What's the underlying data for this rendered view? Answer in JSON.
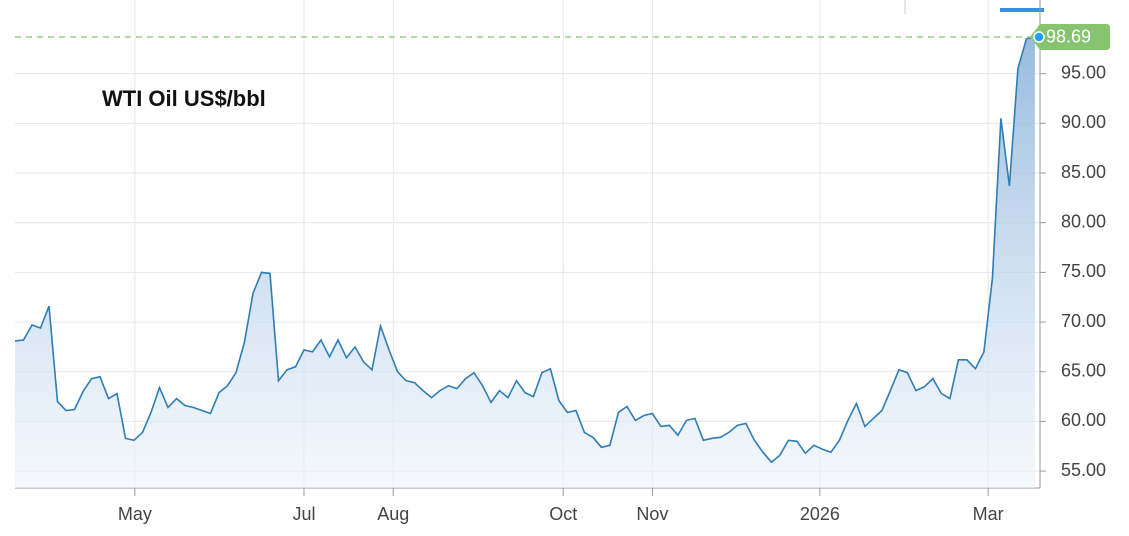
{
  "chart_data": {
    "type": "line",
    "title": "WTI Oil US$/bbl",
    "series": [
      {
        "name": "WTI Oil",
        "color": "#2f7db5",
        "values": [
          68.1,
          68.2,
          69.7,
          69.4,
          71.6,
          62,
          61.1,
          61.2,
          63,
          64.3,
          64.5,
          62.3,
          62.8,
          58.3,
          58.1,
          58.9,
          60.9,
          63.4,
          61.4,
          62.3,
          61.6,
          61.4,
          61.1,
          60.8,
          62.9,
          63.6,
          64.9,
          68,
          72.9,
          75,
          74.9,
          64.1,
          65.2,
          65.5,
          67.2,
          67,
          68.2,
          66.5,
          68.2,
          66.4,
          67.5,
          66,
          65.2,
          69.6,
          67.2,
          65,
          64.1,
          63.9,
          63.1,
          62.4,
          63.1,
          63.6,
          63.3,
          64.3,
          64.9,
          63.6,
          61.9,
          63.1,
          62.4,
          64.1,
          62.9,
          62.5,
          64.9,
          65.3,
          62.1,
          60.9,
          61.1,
          58.9,
          58.4,
          57.4,
          57.6,
          60.9,
          61.5,
          60.1,
          60.6,
          60.8,
          59.5,
          59.6,
          58.6,
          60.1,
          60.3,
          58.1,
          58.3,
          58.4,
          58.9,
          59.6,
          59.8,
          58.1,
          56.9,
          55.9,
          56.6,
          58.1,
          58,
          56.8,
          57.6,
          57.2,
          56.9,
          58.1,
          60.1,
          61.8,
          59.5,
          60.3,
          61.1,
          63.1,
          65.2,
          64.9,
          63.1,
          63.5,
          64.3,
          62.8,
          62.3,
          66.2,
          66.2,
          65.3,
          67,
          74.4,
          90.5,
          83.7,
          95.5,
          98.5,
          98.69
        ]
      }
    ],
    "xlim": [
      0,
      120.6
    ],
    "xticks": [
      {
        "value": 14.1,
        "label": "May"
      },
      {
        "value": 34,
        "label": "Jul"
      },
      {
        "value": 44.5,
        "label": "Aug"
      },
      {
        "value": 64.5,
        "label": "Oct"
      },
      {
        "value": 75,
        "label": "Nov"
      },
      {
        "value": 94.7,
        "label": "2026"
      },
      {
        "value": 114.5,
        "label": "Mar"
      }
    ],
    "ylim": [
      53.3,
      100.3
    ],
    "yticks": [
      {
        "value": 55,
        "label": "55.00"
      },
      {
        "value": 60,
        "label": "60.00"
      },
      {
        "value": 65,
        "label": "65.00"
      },
      {
        "value": 70,
        "label": "70.00"
      },
      {
        "value": 75,
        "label": "75.00"
      },
      {
        "value": 80,
        "label": "80.00"
      },
      {
        "value": 85,
        "label": "85.00"
      },
      {
        "value": 90,
        "label": "90.00"
      },
      {
        "value": 95,
        "label": "95.00"
      }
    ],
    "grid": true
  }
}
